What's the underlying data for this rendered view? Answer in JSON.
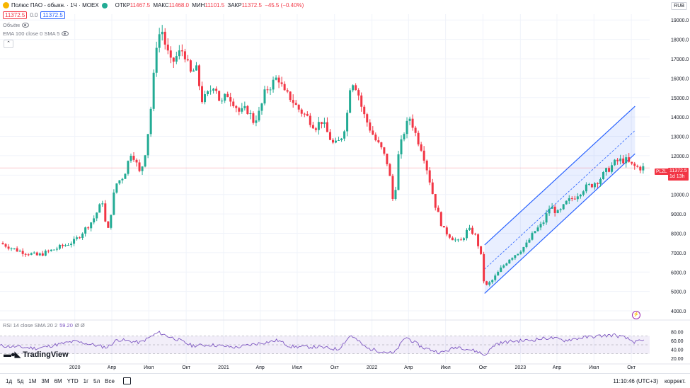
{
  "header": {
    "symbol": "Полюс ПАО - обыкн. · 1Ч · MOEX",
    "open_label": "ОТКР",
    "open": "11467.5",
    "high_label": "МАКС",
    "high": "11468.0",
    "low_label": "МИН",
    "low": "11101.5",
    "close_label": "ЗАКР",
    "close": "11372.5",
    "change": "−45.5 (−0.40%)",
    "bid": "11372.5",
    "spread": "0.0",
    "ask": "11372.5"
  },
  "indicators": {
    "volume_label": "Объём",
    "ema_label": "EMA 100 close 0 SMA 5",
    "rsi_label": "RSI 14 close SMA 20 2",
    "rsi_value": "59.20",
    "rsi_extra": "Ø Ø"
  },
  "currency": "RUB",
  "symbol_tag": "PLZL",
  "price_tag": "11372.5",
  "price_tag_time": "1d 13h",
  "logo_text": "TradingView",
  "toolbar": {
    "ranges": [
      "1д",
      "5д",
      "1М",
      "3М",
      "6М",
      "YTD",
      "1г",
      "5л",
      "Все"
    ],
    "time": "11:10:46 (UTC+3)",
    "correction": "коррект."
  },
  "chart_data": {
    "type": "candlestick",
    "price_axis": {
      "ticks": [
        "19000.0",
        "18000.0",
        "17000.0",
        "16000.0",
        "15000.0",
        "14000.0",
        "13000.0",
        "12000.0",
        "11000.0",
        "10000.0",
        "9000.0",
        "8000.0",
        "7000.0",
        "6000.0",
        "5000.0",
        "4000.0"
      ],
      "range": [
        3600,
        19300
      ]
    },
    "rsi_axis": {
      "ticks": [
        "80.00",
        "60.00",
        "40.00",
        "20.00"
      ],
      "range": [
        10,
        90
      ],
      "band": [
        30,
        70
      ]
    },
    "time_axis": {
      "labels": [
        "2020",
        "Апр",
        "Июл",
        "Окт",
        "2021",
        "Апр",
        "Июл",
        "Окт",
        "2022",
        "Апр",
        "Июл",
        "Окт",
        "2023",
        "Апр",
        "Июл",
        "Окт"
      ],
      "start": "2019-07-01",
      "end": "2023-11-15",
      "label_dates": [
        "2020-01-01",
        "2020-04-01",
        "2020-07-01",
        "2020-10-01",
        "2021-01-01",
        "2021-04-01",
        "2021-07-01",
        "2021-10-01",
        "2022-01-01",
        "2022-04-01",
        "2022-07-01",
        "2022-10-01",
        "2023-01-01",
        "2023-04-01",
        "2023-07-01",
        "2023-10-01"
      ]
    },
    "last_price": 11372.5,
    "price_series": [
      [
        "2019-07-01",
        7500
      ],
      [
        "2019-08-15",
        7100
      ],
      [
        "2019-10-01",
        6850
      ],
      [
        "2019-11-15",
        7200
      ],
      [
        "2020-01-01",
        7600
      ],
      [
        "2020-02-15",
        8700
      ],
      [
        "2020-03-10",
        9700
      ],
      [
        "2020-03-20",
        7800
      ],
      [
        "2020-04-10",
        10500
      ],
      [
        "2020-05-01",
        11000
      ],
      [
        "2020-05-20",
        12300
      ],
      [
        "2020-06-10",
        11000
      ],
      [
        "2020-06-25",
        12500
      ],
      [
        "2020-07-08",
        14800
      ],
      [
        "2020-07-20",
        17800
      ],
      [
        "2020-08-01",
        18600
      ],
      [
        "2020-08-12",
        17600
      ],
      [
        "2020-08-25",
        16700
      ],
      [
        "2020-09-10",
        17200
      ],
      [
        "2020-09-25",
        17500
      ],
      [
        "2020-10-10",
        16200
      ],
      [
        "2020-10-25",
        16500
      ],
      [
        "2020-11-10",
        14800
      ],
      [
        "2020-11-25",
        15200
      ],
      [
        "2020-12-10",
        15800
      ],
      [
        "2020-12-25",
        14600
      ],
      [
        "2021-01-10",
        15200
      ],
      [
        "2021-01-25",
        14800
      ],
      [
        "2021-02-10",
        14200
      ],
      [
        "2021-02-28",
        14400
      ],
      [
        "2021-03-15",
        13800
      ],
      [
        "2021-03-30",
        14200
      ],
      [
        "2021-04-15",
        15400
      ],
      [
        "2021-04-30",
        15700
      ],
      [
        "2021-05-15",
        16100
      ],
      [
        "2021-05-30",
        15200
      ],
      [
        "2021-06-15",
        15000
      ],
      [
        "2021-06-30",
        14500
      ],
      [
        "2021-07-15",
        14200
      ],
      [
        "2021-07-30",
        13900
      ],
      [
        "2021-08-15",
        13500
      ],
      [
        "2021-08-30",
        13800
      ],
      [
        "2021-09-15",
        13100
      ],
      [
        "2021-09-30",
        12500
      ],
      [
        "2021-10-15",
        12800
      ],
      [
        "2021-10-30",
        13800
      ],
      [
        "2021-11-10",
        16000
      ],
      [
        "2021-11-25",
        15500
      ],
      [
        "2021-12-10",
        14200
      ],
      [
        "2021-12-25",
        13500
      ],
      [
        "2022-01-10",
        12800
      ],
      [
        "2022-01-25",
        12300
      ],
      [
        "2022-02-10",
        11500
      ],
      [
        "2022-02-24",
        9300
      ],
      [
        "2022-03-05",
        11800
      ],
      [
        "2022-03-20",
        13200
      ],
      [
        "2022-04-05",
        14000
      ],
      [
        "2022-04-20",
        13000
      ],
      [
        "2022-05-05",
        12300
      ],
      [
        "2022-05-20",
        11000
      ],
      [
        "2022-06-05",
        9500
      ],
      [
        "2022-06-25",
        8200
      ],
      [
        "2022-07-15",
        7800
      ],
      [
        "2022-08-05",
        7500
      ],
      [
        "2022-08-25",
        8200
      ],
      [
        "2022-09-10",
        8000
      ],
      [
        "2022-09-25",
        7000
      ],
      [
        "2022-10-05",
        5200
      ],
      [
        "2022-10-25",
        5600
      ],
      [
        "2022-11-15",
        6200
      ],
      [
        "2022-12-05",
        6700
      ],
      [
        "2022-12-25",
        7000
      ],
      [
        "2023-01-15",
        7400
      ],
      [
        "2023-02-05",
        8100
      ],
      [
        "2023-02-25",
        8500
      ],
      [
        "2023-03-15",
        9400
      ],
      [
        "2023-04-05",
        9000
      ],
      [
        "2023-04-25",
        9600
      ],
      [
        "2023-05-15",
        9900
      ],
      [
        "2023-06-05",
        10300
      ],
      [
        "2023-06-25",
        10500
      ],
      [
        "2023-07-15",
        10800
      ],
      [
        "2023-08-05",
        11300
      ],
      [
        "2023-08-25",
        11700
      ],
      [
        "2023-09-15",
        11800
      ],
      [
        "2023-10-01",
        11500
      ],
      [
        "2023-10-15",
        11400
      ],
      [
        "2023-11-01",
        11372.5
      ]
    ],
    "channel": {
      "start_date": "2022-10-05",
      "end_date": "2023-10-10",
      "lower": [
        4900,
        12100
      ],
      "upper": [
        7400,
        14550
      ],
      "mid": [
        6150,
        13300
      ]
    },
    "rsi_series": [
      [
        "2019-07-01",
        48
      ],
      [
        "2019-10-01",
        42
      ],
      [
        "2020-01-01",
        58
      ],
      [
        "2020-03-20",
        44
      ],
      [
        "2020-04-15",
        62
      ],
      [
        "2020-06-10",
        55
      ],
      [
        "2020-07-25",
        78
      ],
      [
        "2020-08-15",
        70
      ],
      [
        "2020-09-10",
        62
      ],
      [
        "2020-10-15",
        48
      ],
      [
        "2020-12-01",
        50
      ],
      [
        "2021-02-01",
        44
      ],
      [
        "2021-03-20",
        52
      ],
      [
        "2021-05-15",
        60
      ],
      [
        "2021-06-15",
        46
      ],
      [
        "2021-08-20",
        45
      ],
      [
        "2021-10-10",
        40
      ],
      [
        "2021-11-10",
        72
      ],
      [
        "2021-12-20",
        42
      ],
      [
        "2022-02-24",
        30
      ],
      [
        "2022-03-25",
        68
      ],
      [
        "2022-05-05",
        44
      ],
      [
        "2022-06-20",
        32
      ],
      [
        "2022-08-01",
        46
      ],
      [
        "2022-09-20",
        34
      ],
      [
        "2022-10-05",
        26
      ],
      [
        "2022-11-01",
        52
      ],
      [
        "2022-12-10",
        58
      ],
      [
        "2023-01-20",
        60
      ],
      [
        "2023-03-15",
        66
      ],
      [
        "2023-04-20",
        60
      ],
      [
        "2023-06-01",
        66
      ],
      [
        "2023-07-15",
        70
      ],
      [
        "2023-08-20",
        72
      ],
      [
        "2023-09-15",
        66
      ],
      [
        "2023-10-10",
        56
      ],
      [
        "2023-11-01",
        59.2
      ]
    ]
  },
  "colors": {
    "up": "#22ab94",
    "down": "#f23645",
    "channel": "#2962ff",
    "channel_fill": "rgba(41,98,255,0.10)",
    "rsi": "#7e57c2",
    "rsi_fill": "rgba(126,87,194,0.10)",
    "grid": "#f0f3fa",
    "price_line": "#f23645"
  }
}
